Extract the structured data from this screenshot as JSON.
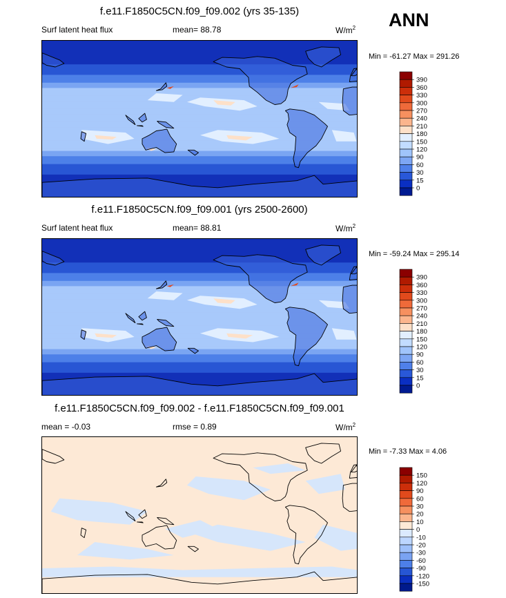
{
  "season": "ANN",
  "panels": [
    {
      "title": "f.e11.F1850C5CN.f09_f09.002 (yrs 35-135)",
      "left_label": "Surf latent heat flux",
      "center_label": "mean=  88.78",
      "units": "W/m",
      "units_sup": "2",
      "minmax": "Min = -61.27 Max = 291.26",
      "colorbar": {
        "labels": [
          "390",
          "360",
          "330",
          "300",
          "270",
          "240",
          "210",
          "180",
          "150",
          "120",
          "90",
          "60",
          "30",
          "15",
          "0"
        ],
        "colors": [
          "#8b0000",
          "#b01a00",
          "#cc2e0a",
          "#e14a1c",
          "#ef6a3a",
          "#f6905f",
          "#fbb58d",
          "#fde0c8",
          "#e2efff",
          "#c2dcff",
          "#a0c4fb",
          "#7da6f4",
          "#4f80ea",
          "#2958d8",
          "#0a2fc2",
          "#001b91"
        ]
      }
    },
    {
      "title": "f.e11.F1850C5CN.f09_f09.001 (yrs 2500-2600)",
      "left_label": "Surf latent heat flux",
      "center_label": "mean=  88.81",
      "units": "W/m",
      "units_sup": "2",
      "minmax": "Min = -59.24 Max = 295.14",
      "colorbar": {
        "labels": [
          "390",
          "360",
          "330",
          "300",
          "270",
          "240",
          "210",
          "180",
          "150",
          "120",
          "90",
          "60",
          "30",
          "15",
          "0"
        ],
        "colors": [
          "#8b0000",
          "#b01a00",
          "#cc2e0a",
          "#e14a1c",
          "#ef6a3a",
          "#f6905f",
          "#fbb58d",
          "#fde0c8",
          "#e2efff",
          "#c2dcff",
          "#a0c4fb",
          "#7da6f4",
          "#4f80ea",
          "#2958d8",
          "#0a2fc2",
          "#001b91"
        ]
      }
    },
    {
      "title": "f.e11.F1850C5CN.f09_f09.002 - f.e11.F1850C5CN.f09_f09.001",
      "left_label": "mean =  -0.03",
      "center_label": "rmse =   0.89",
      "units": "W/m",
      "units_sup": "2",
      "minmax": "Min =  -7.33 Max =   4.06",
      "colorbar": {
        "labels": [
          "150",
          "120",
          "90",
          "60",
          "30",
          "20",
          "10",
          "0",
          "-10",
          "-20",
          "-30",
          "-60",
          "-90",
          "-120",
          "-150"
        ],
        "colors": [
          "#8b0000",
          "#b01a00",
          "#cc2e0a",
          "#e14a1c",
          "#ef6a3a",
          "#f6905f",
          "#fbb58d",
          "#fde9d6",
          "#dbeafe",
          "#bcd6ff",
          "#9ec0fa",
          "#7aa3f2",
          "#4d7fe8",
          "#2656d4",
          "#0a2fbf",
          "#001a8c"
        ]
      }
    }
  ],
  "chart_data": [
    {
      "type": "heatmap",
      "title": "f.e11.F1850C5CN.f09_f09.002 (yrs 35-135)",
      "field": "Surf latent heat flux",
      "units": "W/m2",
      "mean": 88.78,
      "min": -61.27,
      "max": 291.26,
      "contour_levels": [
        0,
        15,
        30,
        60,
        90,
        120,
        150,
        180,
        210,
        240,
        270,
        300,
        330,
        360,
        390
      ]
    },
    {
      "type": "heatmap",
      "title": "f.e11.F1850C5CN.f09_f09.001 (yrs 2500-2600)",
      "field": "Surf latent heat flux",
      "units": "W/m2",
      "mean": 88.81,
      "min": -59.24,
      "max": 295.14,
      "contour_levels": [
        0,
        15,
        30,
        60,
        90,
        120,
        150,
        180,
        210,
        240,
        270,
        300,
        330,
        360,
        390
      ]
    },
    {
      "type": "heatmap",
      "title": "f.e11.F1850C5CN.f09_f09.002 - f.e11.F1850C5CN.f09_f09.001",
      "units": "W/m2",
      "mean": -0.03,
      "rmse": 0.89,
      "min": -7.33,
      "max": 4.06,
      "contour_levels": [
        -150,
        -120,
        -90,
        -60,
        -30,
        -20,
        -10,
        0,
        10,
        20,
        30,
        60,
        90,
        120,
        150
      ]
    }
  ]
}
